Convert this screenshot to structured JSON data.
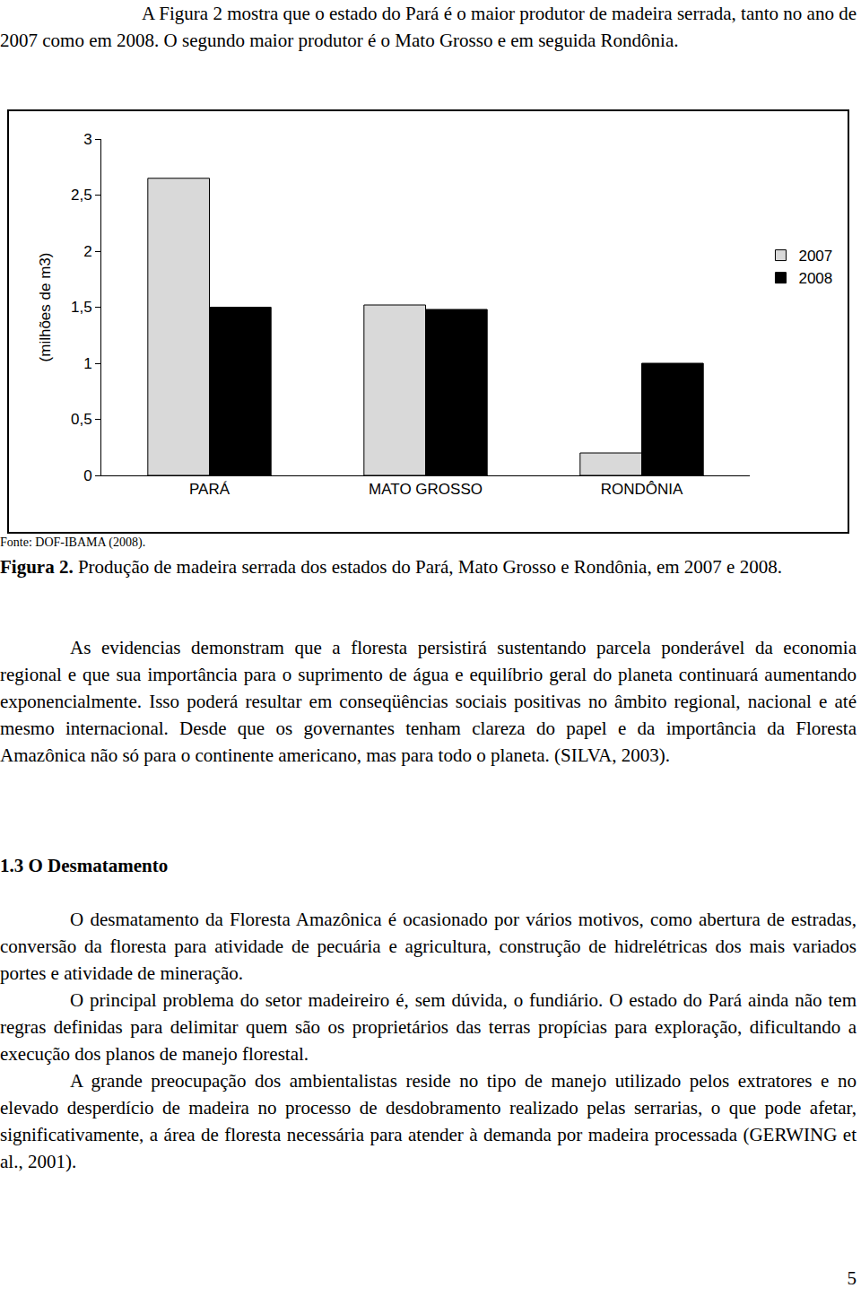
{
  "intro": "A Figura 2 mostra que o estado do Pará é o maior produtor de madeira serrada, tanto no ano de 2007 como em 2008. O segundo maior produtor é o Mato Grosso e em seguida Rondônia.",
  "chart_data": {
    "type": "bar",
    "categories": [
      "PARÁ",
      "MATO GROSSO",
      "RONDÔNIA"
    ],
    "series": [
      {
        "name": "2007",
        "color": "#d9d9d9",
        "values": [
          2.65,
          1.52,
          0.2
        ]
      },
      {
        "name": "2008",
        "color": "#000000",
        "values": [
          1.5,
          1.48,
          1.0
        ]
      }
    ],
    "y_label": "(milhões de m3)",
    "ylim": [
      0,
      3
    ],
    "yticks": [
      0,
      {
        "value": 0.5,
        "label": "0,5"
      },
      1,
      {
        "value": 1.5,
        "label": "1,5"
      },
      2,
      {
        "value": 2.5,
        "label": "2,5"
      },
      3
    ],
    "grid": false,
    "legend": "right"
  },
  "source": "Fonte: DOF-IBAMA (2008).",
  "caption": {
    "label": "Figura 2.",
    "text": "Produção de madeira serrada dos estados do Pará, Mato Grosso e Rondônia, em 2007 e 2008."
  },
  "paragraph": "As evidencias demonstram que a floresta persistirá sustentando parcela ponderável da economia regional e que sua importância para o suprimento de água e equilíbrio geral do planeta continuará aumentando exponencialmente. Isso poderá resultar em conseqüências sociais positivas no âmbito regional, nacional e até mesmo internacional. Desde que os governantes tenham clareza do papel e da importância da Floresta Amazônica não só para o continente americano, mas para todo o planeta. (SILVA, 2003).",
  "section": {
    "heading": "1.3 O Desmatamento",
    "paragraphs": [
      "O desmatamento da Floresta Amazônica é ocasionado por vários motivos, como abertura de estradas, conversão da floresta para atividade de pecuária e agricultura, construção de hidrelétricas dos mais variados portes e atividade de mineração.",
      "O principal problema do setor madeireiro é, sem dúvida, o fundiário. O estado do Pará ainda não tem regras definidas para delimitar quem são os proprietários das terras propícias para exploração, dificultando a execução dos planos de manejo florestal.",
      "A grande preocupação dos ambientalistas reside no tipo de manejo utilizado pelos extratores e no elevado desperdício de madeira no processo de desdobramento realizado pelas serrarias, o que pode afetar, significativamente, a área de floresta necessária para atender à demanda por madeira processada (GERWING et al., 2001)."
    ]
  },
  "page_number": "5"
}
